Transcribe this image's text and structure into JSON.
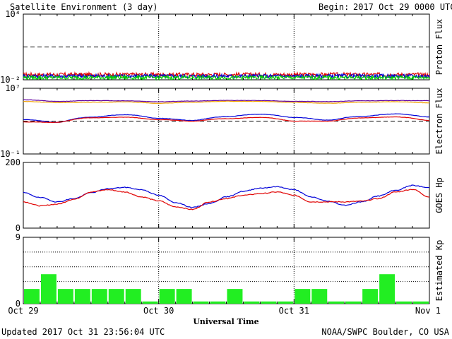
{
  "header": {
    "title": "Satellite Environment (3 day)",
    "begin_label": "Begin:",
    "begin_value": "2017 Oct 29 0000 UTC"
  },
  "footer": {
    "updated": "Updated 2017 Oct 31 23:56:04 UTC",
    "credit": "NOAA/SWPC Boulder, CO USA"
  },
  "x_axis": {
    "label": "Universal Time",
    "ticks": [
      "Oct 29",
      "Oct 30",
      "Oct 31",
      "Nov 1"
    ]
  },
  "colors": {
    "red": "#e00000",
    "blue": "#0000d8",
    "green": "#00d000",
    "orange": "#f0a000",
    "purple": "#6000a0",
    "kp_bar": "#22ee22"
  },
  "chart_data": [
    {
      "type": "line",
      "ylabel": "Proton Flux",
      "yscale": "log",
      "ylim": [
        0.01,
        10000
      ],
      "yticks": [
        {
          "label": "10⁴",
          "value": 10000
        },
        {
          "label": "10⁻²",
          "value": 0.01
        }
      ],
      "threshold": 10,
      "x_range_days": [
        0,
        3
      ],
      "series": [
        {
          "color": "red",
          "approx_level": 0.03
        },
        {
          "color": "blue",
          "approx_level": 0.022
        },
        {
          "color": "green",
          "approx_level": 0.016
        }
      ]
    },
    {
      "type": "line",
      "ylabel": "Electron Flux",
      "yscale": "log",
      "ylim": [
        0.1,
        10000000
      ],
      "yticks": [
        {
          "label": "10⁷",
          "value": 10000000
        },
        {
          "label": "10⁻¹",
          "value": 0.1
        }
      ],
      "threshold": 1000,
      "x_days": [
        0,
        0.25,
        0.5,
        0.75,
        1.0,
        1.25,
        1.5,
        1.75,
        2.0,
        2.25,
        2.5,
        2.75,
        3.0
      ],
      "series": [
        {
          "color": "purple",
          "values": [
            400000,
            250000,
            320000,
            300000,
            230000,
            280000,
            330000,
            320000,
            260000,
            240000,
            300000,
            320000,
            310000
          ]
        },
        {
          "color": "orange",
          "values": [
            250000,
            180000,
            200000,
            220000,
            150000,
            200000,
            260000,
            250000,
            190000,
            150000,
            200000,
            230000,
            170000
          ]
        },
        {
          "color": "blue",
          "values": [
            1500,
            700,
            3000,
            6000,
            2200,
            1200,
            3500,
            7000,
            2800,
            1300,
            3800,
            7500,
            3200
          ]
        },
        {
          "color": "red",
          "values": [
            800,
            700,
            2500,
            3000,
            1500,
            1000,
            2000,
            2800,
            1000,
            1000,
            2500,
            3200,
            1200
          ]
        }
      ]
    },
    {
      "type": "line",
      "ylabel": "GOES Hp",
      "ylim": [
        0,
        200
      ],
      "yticks": [
        {
          "label": "200",
          "value": 200
        },
        {
          "label": "0",
          "value": 0
        }
      ],
      "x_days": [
        0,
        0.125,
        0.25,
        0.375,
        0.5,
        0.625,
        0.75,
        0.875,
        1.0,
        1.125,
        1.25,
        1.375,
        1.5,
        1.625,
        1.75,
        1.875,
        2.0,
        2.125,
        2.25,
        2.375,
        2.5,
        2.625,
        2.75,
        2.875,
        3.0
      ],
      "series": [
        {
          "color": "blue",
          "values": [
            108,
            93,
            80,
            90,
            108,
            120,
            124,
            117,
            100,
            78,
            63,
            75,
            95,
            112,
            122,
            126,
            117,
            95,
            82,
            70,
            80,
            98,
            115,
            130,
            123
          ]
        },
        {
          "color": "red",
          "values": [
            80,
            68,
            73,
            88,
            110,
            117,
            110,
            95,
            83,
            65,
            57,
            80,
            90,
            100,
            105,
            110,
            100,
            80,
            80,
            80,
            82,
            90,
            110,
            118,
            95
          ]
        }
      ]
    },
    {
      "type": "bar",
      "ylabel": "Estimated Kp",
      "ylim": [
        0,
        9
      ],
      "yticks": [
        {
          "label": "9",
          "value": 9
        },
        {
          "label": "0",
          "value": 0
        }
      ],
      "gridlines": [
        3,
        5,
        7,
        9
      ],
      "bar_hours": 3,
      "values": [
        2,
        4,
        2,
        2,
        2,
        2,
        2,
        0.3,
        2,
        2,
        0.3,
        0.3,
        2,
        0.3,
        0.3,
        0.3,
        2,
        2,
        0.3,
        0.3,
        2,
        4,
        0.3,
        0.3
      ]
    }
  ]
}
